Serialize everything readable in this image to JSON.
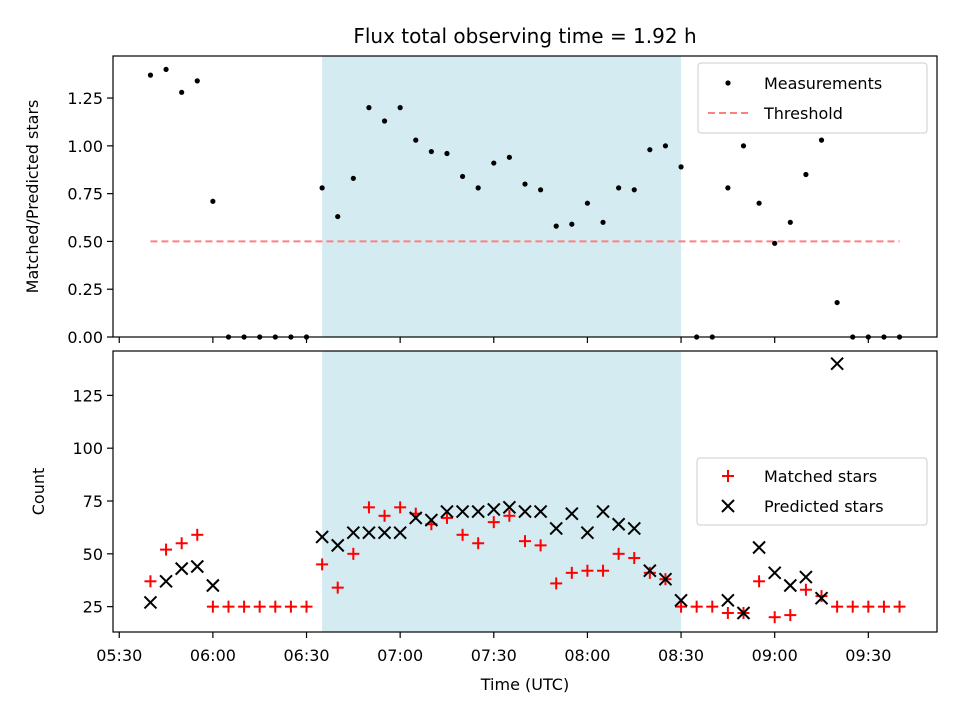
{
  "chart_data": [
    {
      "type": "scatter",
      "title": "Flux total observing time = 1.92 h",
      "ylabel": "Matched/Predicted stars",
      "xlabel": "",
      "x_range": [
        "05:28",
        "09:52"
      ],
      "ylim": [
        0,
        1.47
      ],
      "yticks": [
        "0.00",
        "0.25",
        "0.50",
        "0.75",
        "1.00",
        "1.25"
      ],
      "ytick_values": [
        0,
        0.25,
        0.5,
        0.75,
        1.0,
        1.25
      ],
      "shaded_span": [
        "06:35",
        "08:30"
      ],
      "shade_color": "#d4ebf2",
      "legend_position": "top-right",
      "threshold": {
        "name": "Threshold",
        "y": 0.5,
        "x_from": "05:40",
        "x_to": "09:40",
        "color": "#ff7f7f",
        "style": "dashed"
      },
      "series": [
        {
          "name": "Measurements",
          "marker": "dot",
          "color": "#000000",
          "points": [
            [
              "05:40",
              1.37
            ],
            [
              "05:45",
              1.4
            ],
            [
              "05:50",
              1.28
            ],
            [
              "05:55",
              1.34
            ],
            [
              "06:00",
              0.71
            ],
            [
              "06:05",
              0.0
            ],
            [
              "06:10",
              0.0
            ],
            [
              "06:15",
              0.0
            ],
            [
              "06:20",
              0.0
            ],
            [
              "06:25",
              0.0
            ],
            [
              "06:30",
              0.0
            ],
            [
              "06:35",
              0.78
            ],
            [
              "06:40",
              0.63
            ],
            [
              "06:45",
              0.83
            ],
            [
              "06:50",
              1.2
            ],
            [
              "06:55",
              1.13
            ],
            [
              "07:00",
              1.2
            ],
            [
              "07:05",
              1.03
            ],
            [
              "07:10",
              0.97
            ],
            [
              "07:15",
              0.96
            ],
            [
              "07:20",
              0.84
            ],
            [
              "07:25",
              0.78
            ],
            [
              "07:30",
              0.91
            ],
            [
              "07:35",
              0.94
            ],
            [
              "07:40",
              0.8
            ],
            [
              "07:45",
              0.77
            ],
            [
              "07:50",
              0.58
            ],
            [
              "07:55",
              0.59
            ],
            [
              "08:00",
              0.7
            ],
            [
              "08:05",
              0.6
            ],
            [
              "08:10",
              0.78
            ],
            [
              "08:15",
              0.77
            ],
            [
              "08:20",
              0.98
            ],
            [
              "08:25",
              1.0
            ],
            [
              "08:30",
              0.89
            ],
            [
              "08:35",
              0.0
            ],
            [
              "08:40",
              0.0
            ],
            [
              "08:45",
              0.78
            ],
            [
              "08:50",
              1.0
            ],
            [
              "08:55",
              0.7
            ],
            [
              "09:00",
              0.49
            ],
            [
              "09:05",
              0.6
            ],
            [
              "09:10",
              0.85
            ],
            [
              "09:15",
              1.03
            ],
            [
              "09:20",
              0.18
            ],
            [
              "09:25",
              0.0
            ],
            [
              "09:30",
              0.0
            ],
            [
              "09:35",
              0.0
            ],
            [
              "09:40",
              0.0
            ]
          ]
        }
      ]
    },
    {
      "type": "scatter",
      "title": "",
      "ylabel": "Count",
      "xlabel": "Time (UTC)",
      "x_range": [
        "05:28",
        "09:52"
      ],
      "ylim": [
        13,
        146
      ],
      "yticks": [
        "25",
        "50",
        "75",
        "100",
        "125"
      ],
      "ytick_values": [
        25,
        50,
        75,
        100,
        125
      ],
      "xticks": [
        "05:30",
        "06:00",
        "06:30",
        "07:00",
        "07:30",
        "08:00",
        "08:30",
        "09:00",
        "09:30"
      ],
      "shaded_span": [
        "06:35",
        "08:30"
      ],
      "shade_color": "#d4ebf2",
      "legend_position": "center-right",
      "series": [
        {
          "name": "Matched stars",
          "marker": "plus",
          "color": "#ff0000",
          "points": [
            [
              "05:40",
              37
            ],
            [
              "05:45",
              52
            ],
            [
              "05:50",
              55
            ],
            [
              "05:55",
              59
            ],
            [
              "06:00",
              25
            ],
            [
              "06:05",
              25
            ],
            [
              "06:10",
              25
            ],
            [
              "06:15",
              25
            ],
            [
              "06:20",
              25
            ],
            [
              "06:25",
              25
            ],
            [
              "06:30",
              25
            ],
            [
              "06:35",
              45
            ],
            [
              "06:40",
              34
            ],
            [
              "06:45",
              50
            ],
            [
              "06:50",
              72
            ],
            [
              "06:55",
              68
            ],
            [
              "07:00",
              72
            ],
            [
              "07:05",
              69
            ],
            [
              "07:10",
              64
            ],
            [
              "07:15",
              67
            ],
            [
              "07:20",
              59
            ],
            [
              "07:25",
              55
            ],
            [
              "07:30",
              65
            ],
            [
              "07:35",
              68
            ],
            [
              "07:40",
              56
            ],
            [
              "07:45",
              54
            ],
            [
              "07:50",
              36
            ],
            [
              "07:55",
              41
            ],
            [
              "08:00",
              42
            ],
            [
              "08:05",
              42
            ],
            [
              "08:10",
              50
            ],
            [
              "08:15",
              48
            ],
            [
              "08:20",
              41
            ],
            [
              "08:25",
              38
            ],
            [
              "08:30",
              25
            ],
            [
              "08:35",
              25
            ],
            [
              "08:40",
              25
            ],
            [
              "08:45",
              22
            ],
            [
              "08:50",
              22
            ],
            [
              "08:55",
              37
            ],
            [
              "09:00",
              20
            ],
            [
              "09:05",
              21
            ],
            [
              "09:10",
              33
            ],
            [
              "09:15",
              30
            ],
            [
              "09:20",
              25
            ],
            [
              "09:25",
              25
            ],
            [
              "09:30",
              25
            ],
            [
              "09:35",
              25
            ],
            [
              "09:40",
              25
            ]
          ]
        },
        {
          "name": "Predicted stars",
          "marker": "x",
          "color": "#000000",
          "points": [
            [
              "05:40",
              27
            ],
            [
              "05:45",
              37
            ],
            [
              "05:50",
              43
            ],
            [
              "05:55",
              44
            ],
            [
              "06:00",
              35
            ],
            [
              "06:35",
              58
            ],
            [
              "06:40",
              54
            ],
            [
              "06:45",
              60
            ],
            [
              "06:50",
              60
            ],
            [
              "06:55",
              60
            ],
            [
              "07:00",
              60
            ],
            [
              "07:05",
              67
            ],
            [
              "07:10",
              66
            ],
            [
              "07:15",
              70
            ],
            [
              "07:20",
              70
            ],
            [
              "07:25",
              70
            ],
            [
              "07:30",
              71
            ],
            [
              "07:35",
              72
            ],
            [
              "07:40",
              70
            ],
            [
              "07:45",
              70
            ],
            [
              "07:50",
              62
            ],
            [
              "07:55",
              69
            ],
            [
              "08:00",
              60
            ],
            [
              "08:05",
              70
            ],
            [
              "08:10",
              64
            ],
            [
              "08:15",
              62
            ],
            [
              "08:20",
              42
            ],
            [
              "08:25",
              38
            ],
            [
              "08:30",
              28
            ],
            [
              "08:45",
              28
            ],
            [
              "08:50",
              22
            ],
            [
              "08:55",
              53
            ],
            [
              "09:00",
              41
            ],
            [
              "09:05",
              35
            ],
            [
              "09:10",
              39
            ],
            [
              "09:15",
              29
            ],
            [
              "09:20",
              140
            ]
          ]
        }
      ]
    }
  ]
}
